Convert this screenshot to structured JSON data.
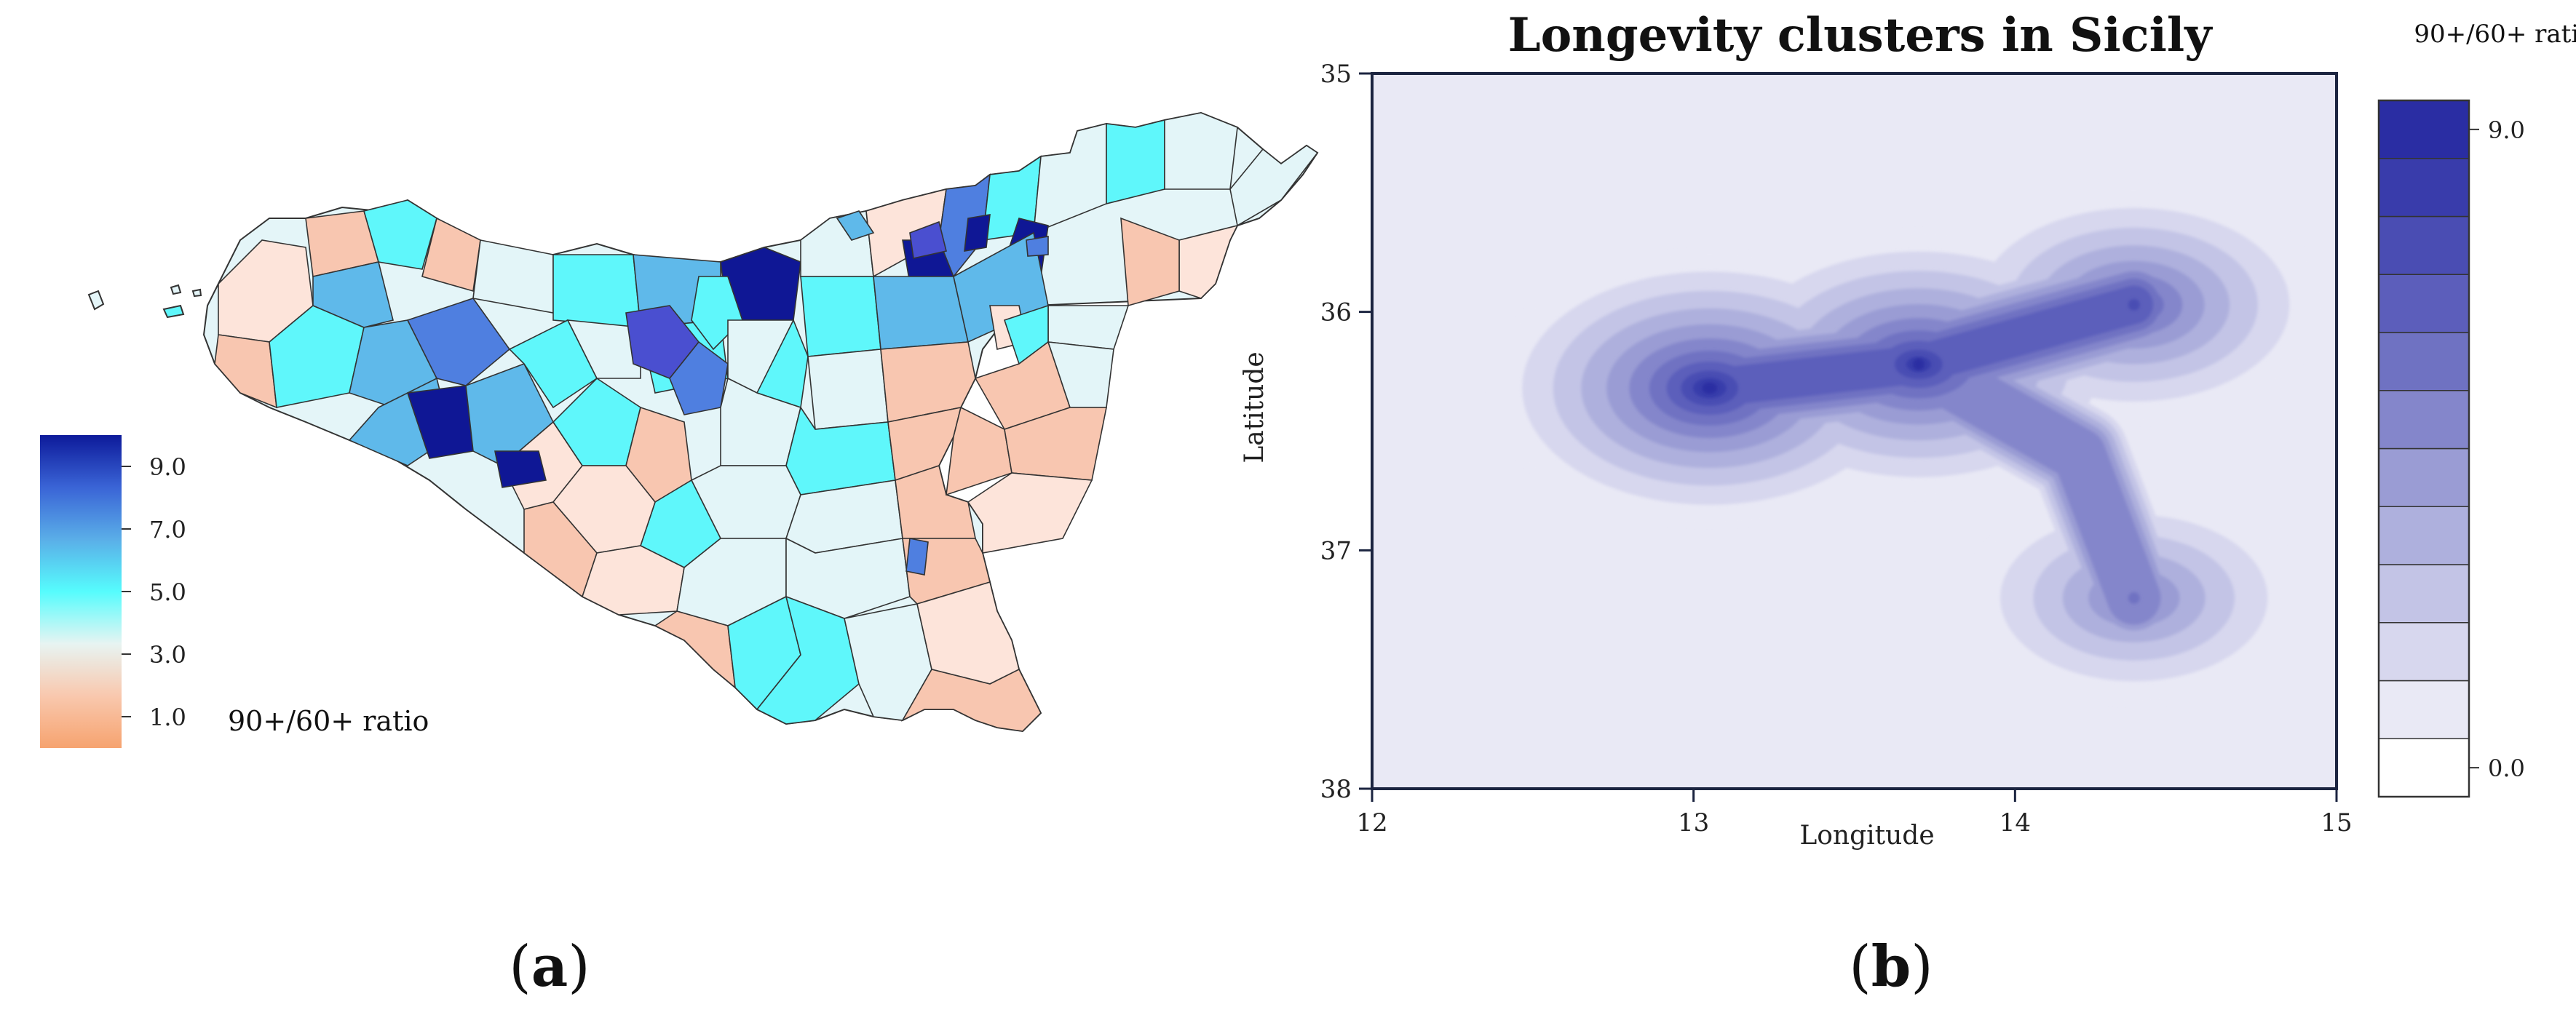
{
  "panels": {
    "a": {
      "label_open": "(",
      "letter": "a",
      "label_close": ")"
    },
    "b": {
      "label_open": "(",
      "letter": "b",
      "label_close": ")"
    }
  },
  "chart_data": [
    {
      "type": "choropleth",
      "panel": "a",
      "region": "Sicily municipalities",
      "colorbar": {
        "title": "90+/60+ ratio",
        "ticks": [
          "9.0",
          "7.0",
          "5.0",
          "3.0",
          "1.0"
        ],
        "tick_values": [
          9.0,
          7.0,
          5.0,
          3.0,
          1.0
        ],
        "range": [
          0,
          10
        ],
        "colors": [
          "#f6a36f",
          "#f9c8ae",
          "#e7f4f2",
          "#56fcfd",
          "#5aaee8",
          "#3a64d6",
          "#0d1a9a"
        ]
      },
      "category_colors": {
        "low": "#f8c6b0",
        "pale": "#fde4da",
        "light": "#e3f5f8",
        "cyan": "#5ff7fb",
        "sky": "#5fb9ea",
        "mid": "#4f7fe0",
        "purple": "#4a4fd0",
        "dark": "#0f1795"
      }
    },
    {
      "type": "heatmap",
      "panel": "b",
      "subtype": "kernel-density-contour",
      "title": "Longevity clusters in Sicily",
      "xlabel": "Longitude",
      "ylabel": "Latitude",
      "xlim": [
        12,
        15
      ],
      "ylim": [
        35,
        38
      ],
      "y_inverted": true,
      "xticks": [
        "12",
        "13",
        "14",
        "15"
      ],
      "xtick_values": [
        12,
        13,
        14,
        15
      ],
      "yticks": [
        "35",
        "36",
        "37",
        "38"
      ],
      "ytick_values": [
        35,
        36,
        37,
        38
      ],
      "clusters": [
        {
          "lon": 13.05,
          "lat": 36.32,
          "intensity": 1.0
        },
        {
          "lon": 13.7,
          "lat": 36.22,
          "intensity": 0.95
        },
        {
          "lon": 14.37,
          "lat": 35.97,
          "intensity": 0.75
        },
        {
          "lon": 14.37,
          "lat": 37.2,
          "intensity": 0.6
        }
      ],
      "levels": 12,
      "colorbar": {
        "title": "90+/60+ ratio",
        "ticks": [
          "9.0",
          "0.0"
        ],
        "tick_values": [
          9.0,
          0.0
        ],
        "range": [
          0,
          9
        ],
        "colors": [
          "#ffffff",
          "#e9e9f5",
          "#d7d7ee",
          "#c3c4e6",
          "#aeb0dd",
          "#9a9cd4",
          "#8486cb",
          "#6f72c2",
          "#5c5ebb",
          "#4a4db3",
          "#393cab",
          "#2a2da3"
        ]
      }
    }
  ]
}
